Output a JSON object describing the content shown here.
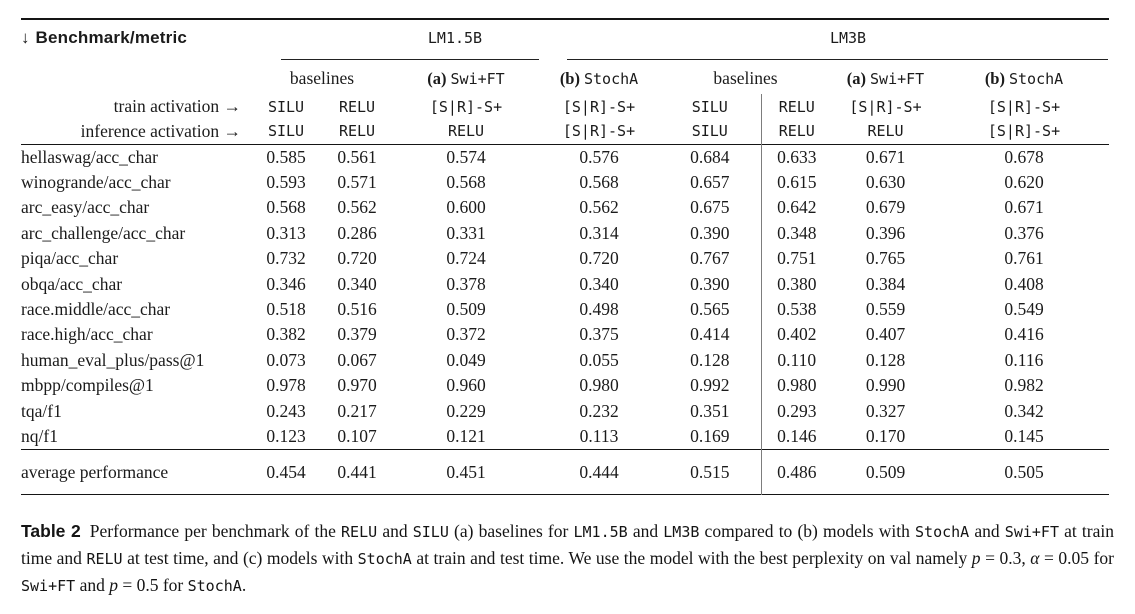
{
  "colors": {
    "rule": "#151515",
    "column_divider": "#7d7d7d",
    "text": "#1b1b1b"
  },
  "table": {
    "corner_arrow": "↓",
    "corner_label": "Benchmark/metric",
    "groups": [
      {
        "label": "LM1.5B"
      },
      {
        "label": "LM3B"
      }
    ],
    "subgroups": [
      {
        "prefix": "",
        "name": "baselines"
      },
      {
        "prefix": "(a)",
        "name": "Swi+FT"
      },
      {
        "prefix": "(b)",
        "name": "StochA"
      },
      {
        "prefix": "",
        "name": "baselines"
      },
      {
        "prefix": "(a)",
        "name": "Swi+FT"
      },
      {
        "prefix": "(b)",
        "name": "StochA"
      }
    ],
    "train_label": "train activation →",
    "inference_label": "inference activation →",
    "train_activations": [
      "SILU",
      "RELU",
      "[S|R]-S+",
      "[S|R]-S+",
      "SILU",
      "RELU",
      "[S|R]-S+",
      "[S|R]-S+"
    ],
    "inference_activations": [
      "SILU",
      "RELU",
      "RELU",
      "[S|R]-S+",
      "SILU",
      "RELU",
      "RELU",
      "[S|R]-S+"
    ],
    "rows": [
      {
        "label": "hellaswag/acc_char",
        "values": [
          "0.585",
          "0.561",
          "0.574",
          "0.576",
          "0.684",
          "0.633",
          "0.671",
          "0.678"
        ]
      },
      {
        "label": "winogrande/acc_char",
        "values": [
          "0.593",
          "0.571",
          "0.568",
          "0.568",
          "0.657",
          "0.615",
          "0.630",
          "0.620"
        ]
      },
      {
        "label": "arc_easy/acc_char",
        "values": [
          "0.568",
          "0.562",
          "0.600",
          "0.562",
          "0.675",
          "0.642",
          "0.679",
          "0.671"
        ]
      },
      {
        "label": "arc_challenge/acc_char",
        "values": [
          "0.313",
          "0.286",
          "0.331",
          "0.314",
          "0.390",
          "0.348",
          "0.396",
          "0.376"
        ]
      },
      {
        "label": "piqa/acc_char",
        "values": [
          "0.732",
          "0.720",
          "0.724",
          "0.720",
          "0.767",
          "0.751",
          "0.765",
          "0.761"
        ]
      },
      {
        "label": "obqa/acc_char",
        "values": [
          "0.346",
          "0.340",
          "0.378",
          "0.340",
          "0.390",
          "0.380",
          "0.384",
          "0.408"
        ]
      },
      {
        "label": "race.middle/acc_char",
        "values": [
          "0.518",
          "0.516",
          "0.509",
          "0.498",
          "0.565",
          "0.538",
          "0.559",
          "0.549"
        ]
      },
      {
        "label": "race.high/acc_char",
        "values": [
          "0.382",
          "0.379",
          "0.372",
          "0.375",
          "0.414",
          "0.402",
          "0.407",
          "0.416"
        ]
      },
      {
        "label": "human_eval_plus/pass@1",
        "values": [
          "0.073",
          "0.067",
          "0.049",
          "0.055",
          "0.128",
          "0.110",
          "0.128",
          "0.116"
        ]
      },
      {
        "label": "mbpp/compiles@1",
        "values": [
          "0.978",
          "0.970",
          "0.960",
          "0.980",
          "0.992",
          "0.980",
          "0.990",
          "0.982"
        ]
      },
      {
        "label": "tqa/f1",
        "values": [
          "0.243",
          "0.217",
          "0.229",
          "0.232",
          "0.351",
          "0.293",
          "0.327",
          "0.342"
        ]
      },
      {
        "label": "nq/f1",
        "values": [
          "0.123",
          "0.107",
          "0.121",
          "0.113",
          "0.169",
          "0.146",
          "0.170",
          "0.145"
        ]
      }
    ],
    "average_row": {
      "label": "average performance",
      "values": [
        "0.454",
        "0.441",
        "0.451",
        "0.444",
        "0.515",
        "0.486",
        "0.509",
        "0.505"
      ]
    }
  },
  "caption": {
    "runs": [
      {
        "t": "Table 2",
        "s": "label"
      },
      {
        "t": "Performance per benchmark of the ",
        "s": "plain"
      },
      {
        "t": "RELU",
        "s": "mono"
      },
      {
        "t": " and ",
        "s": "plain"
      },
      {
        "t": "SILU",
        "s": "mono"
      },
      {
        "t": " (a) baselines for ",
        "s": "plain"
      },
      {
        "t": "LM1.5B",
        "s": "mono"
      },
      {
        "t": " and ",
        "s": "plain"
      },
      {
        "t": "LM3B",
        "s": "mono"
      },
      {
        "t": " compared to (b) models with ",
        "s": "plain"
      },
      {
        "t": "StochA",
        "s": "mono"
      },
      {
        "t": " and ",
        "s": "plain"
      },
      {
        "t": "Swi+FT",
        "s": "mono"
      },
      {
        "t": " at train time and ",
        "s": "plain"
      },
      {
        "t": "RELU",
        "s": "mono"
      },
      {
        "t": " at test time, and (c) models with ",
        "s": "plain"
      },
      {
        "t": "StochA",
        "s": "mono"
      },
      {
        "t": " at train and test time. We use the model with the best perplexity on val namely ",
        "s": "plain"
      },
      {
        "t": "p",
        "s": "mathvar"
      },
      {
        "t": " = 0.3, ",
        "s": "math"
      },
      {
        "t": "α",
        "s": "mathvar"
      },
      {
        "t": " = 0.05",
        "s": "math"
      },
      {
        "t": " for ",
        "s": "plain"
      },
      {
        "t": "Swi+FT",
        "s": "mono"
      },
      {
        "t": " and ",
        "s": "plain"
      },
      {
        "t": "p",
        "s": "mathvar"
      },
      {
        "t": " = 0.5",
        "s": "math"
      },
      {
        "t": " for ",
        "s": "plain"
      },
      {
        "t": "StochA",
        "s": "mono"
      },
      {
        "t": ".",
        "s": "plain"
      }
    ]
  }
}
